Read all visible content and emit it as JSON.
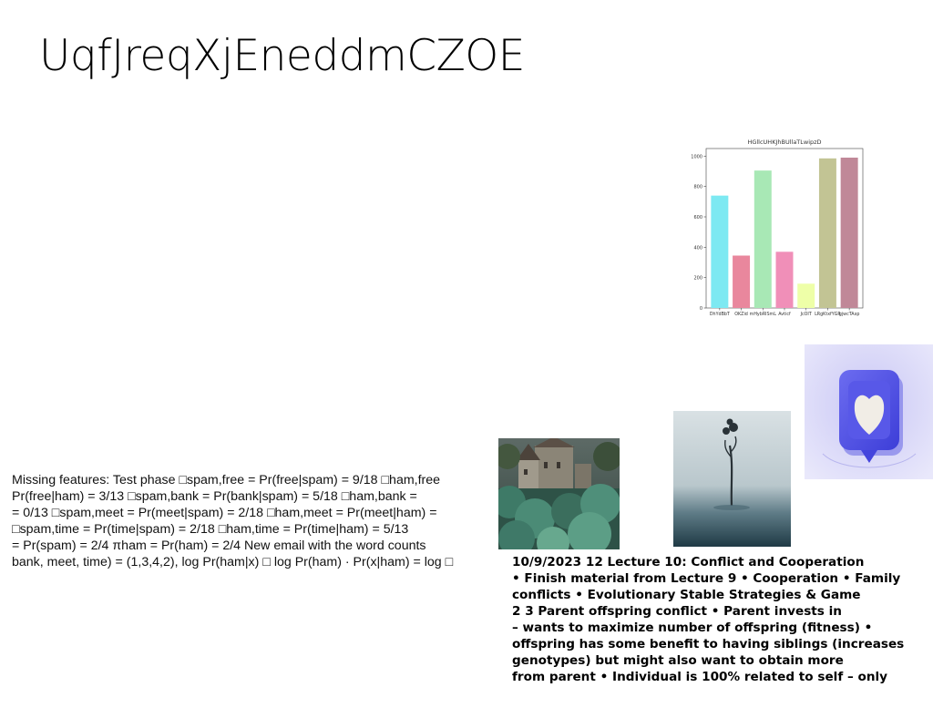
{
  "title": "UqfJreqXjEneddmCZOE",
  "left_paragraph": {
    "lines": [
      "Missing features: Test phase □spam,free = Pr(free|spam) = 9/18 □ham,free",
      "Pr(free|ham) = 3/13 □spam,bank = Pr(bank|spam) = 5/18 □ham,bank =",
      "= 0/13 □spam,meet = Pr(meet|spam) = 2/18 □ham,meet = Pr(meet|ham) =",
      "□spam,time = Pr(time|spam) = 2/18 □ham,time = Pr(time|ham) = 5/13",
      "= Pr(spam) = 2/4 πham = Pr(ham) = 2/4 New email with the word counts",
      "bank, meet, time) = (1,3,4,2), log Pr(ham|x) □ log Pr(ham) · Pr(x|ham) = log □"
    ]
  },
  "right_paragraph": {
    "lines": [
      "10/9/2023 12 Lecture 10: Conflict and Cooperation",
      "• Finish material from Lecture 9 • Cooperation • Family",
      "conflicts • Evolutionary Stable Strategies & Game",
      "2 3 Parent offspring conflict • Parent invests in",
      "– wants to maximize number of offspring (fitness) •",
      "offspring has some benefit to having siblings (increases",
      "genotypes) but might also want to obtain more",
      "from parent • Individual is 100% related to self – only"
    ]
  },
  "chart_data": {
    "type": "bar",
    "title": "HGllcUHKJhBUllaTLwipzD",
    "categories": [
      "DhYdBbT",
      "OKZid",
      "mHybRlSmL",
      "Avticf",
      "JcOIT",
      "LRgKtxfYGR",
      "gjwcTAxp"
    ],
    "values": [
      740,
      345,
      905,
      370,
      160,
      985,
      990
    ],
    "colors": [
      "#7de9f2",
      "#e9879d",
      "#a8e8b5",
      "#f08fb8",
      "#eeffa8",
      "#c2c494",
      "#c08898"
    ],
    "ylim": [
      0,
      1050
    ],
    "yticks": [
      0,
      200,
      400,
      600,
      800,
      1000
    ],
    "xlabel": "",
    "ylabel": "",
    "grid": false
  },
  "images": {
    "castle": "castle-photo",
    "tree": "foggy-tree-photo",
    "heart": "heart-notification-icon-photo"
  }
}
